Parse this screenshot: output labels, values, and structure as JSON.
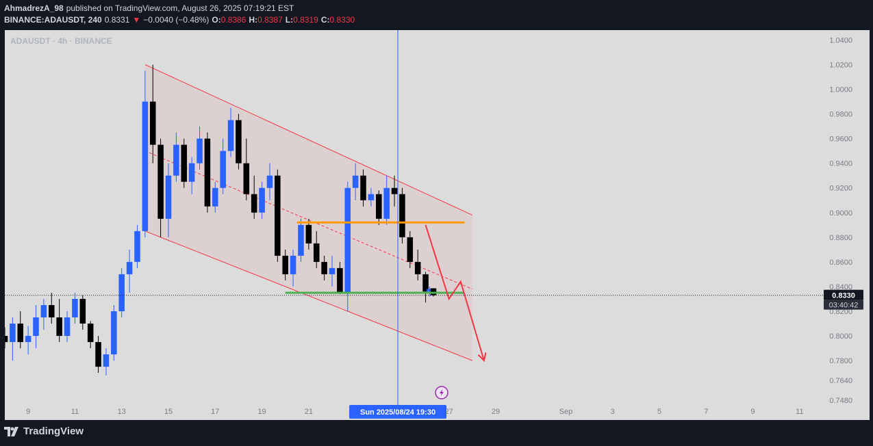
{
  "header": {
    "author": "AhmadrezA_98",
    "published_text": "published on TradingView.com, August 26, 2025 07:19:21 EST",
    "symbol_line": "BINANCE:ADAUSDT, 240",
    "last_price": "0.8331",
    "down_arrow": "▼",
    "change": "−0.0040 (−0.48%)",
    "o_label": "O:",
    "o_value": "0.8386",
    "h_label": "H:",
    "h_value": "0.8387",
    "l_label": "L:",
    "l_value": "0.8319",
    "c_label": "C:",
    "c_value": "0.8330"
  },
  "footer": {
    "brand": "TradingView"
  },
  "colors": {
    "up": "#2962ff",
    "down": "#000000",
    "channel": "#f23645",
    "orange_level": "#ff9800",
    "green_level": "#4caf50",
    "crosshair": "#2962ff"
  },
  "chart_data": {
    "type": "candlestick",
    "title": "ADAUSDT · 4h · BINANCE",
    "x_tick_labels": [
      "9",
      "11",
      "13",
      "15",
      "17",
      "19",
      "21",
      "27",
      "29",
      "Sep",
      "3",
      "5",
      "7",
      "9",
      "11"
    ],
    "y_tick_labels": [
      "1.0400",
      "1.0200",
      "1.0000",
      "0.9800",
      "0.9600",
      "0.9400",
      "0.9200",
      "0.9000",
      "0.8800",
      "0.8600",
      "0.8400",
      "0.8200",
      "0.8000",
      "0.7800",
      "0.7640",
      "0.7480"
    ],
    "ylim": [
      0.744,
      1.048
    ],
    "x_domain": [
      "2025-08-08T00:00",
      "2025-09-12T00:00"
    ],
    "current_price_label": "0.8330",
    "countdown_label": "03:40:42",
    "crosshair_label": "Sun 2025/08/24   19:30",
    "crosshair_time": "2025-08-24T19:30",
    "current_price": 0.833,
    "candles": [
      {
        "t": "2025-08-08T00:00",
        "o": 0.8,
        "h": 0.807,
        "l": 0.79,
        "c": 0.795
      },
      {
        "t": "2025-08-08T08:00",
        "o": 0.795,
        "h": 0.815,
        "l": 0.78,
        "c": 0.81
      },
      {
        "t": "2025-08-08T16:00",
        "o": 0.81,
        "h": 0.82,
        "l": 0.79,
        "c": 0.795
      },
      {
        "t": "2025-08-09T00:00",
        "o": 0.795,
        "h": 0.808,
        "l": 0.785,
        "c": 0.8
      },
      {
        "t": "2025-08-09T08:00",
        "o": 0.8,
        "h": 0.825,
        "l": 0.79,
        "c": 0.815
      },
      {
        "t": "2025-08-09T16:00",
        "o": 0.815,
        "h": 0.83,
        "l": 0.805,
        "c": 0.825
      },
      {
        "t": "2025-08-10T00:00",
        "o": 0.825,
        "h": 0.835,
        "l": 0.81,
        "c": 0.815
      },
      {
        "t": "2025-08-10T08:00",
        "o": 0.815,
        "h": 0.83,
        "l": 0.795,
        "c": 0.8
      },
      {
        "t": "2025-08-10T16:00",
        "o": 0.8,
        "h": 0.82,
        "l": 0.795,
        "c": 0.815
      },
      {
        "t": "2025-08-11T00:00",
        "o": 0.815,
        "h": 0.835,
        "l": 0.81,
        "c": 0.83
      },
      {
        "t": "2025-08-11T08:00",
        "o": 0.83,
        "h": 0.833,
        "l": 0.805,
        "c": 0.81
      },
      {
        "t": "2025-08-11T16:00",
        "o": 0.81,
        "h": 0.812,
        "l": 0.79,
        "c": 0.795
      },
      {
        "t": "2025-08-12T00:00",
        "o": 0.795,
        "h": 0.8,
        "l": 0.77,
        "c": 0.775
      },
      {
        "t": "2025-08-12T08:00",
        "o": 0.775,
        "h": 0.79,
        "l": 0.768,
        "c": 0.785
      },
      {
        "t": "2025-08-12T16:00",
        "o": 0.785,
        "h": 0.825,
        "l": 0.78,
        "c": 0.82
      },
      {
        "t": "2025-08-13T00:00",
        "o": 0.82,
        "h": 0.855,
        "l": 0.815,
        "c": 0.85
      },
      {
        "t": "2025-08-13T08:00",
        "o": 0.85,
        "h": 0.87,
        "l": 0.835,
        "c": 0.86
      },
      {
        "t": "2025-08-13T16:00",
        "o": 0.86,
        "h": 0.89,
        "l": 0.855,
        "c": 0.885
      },
      {
        "t": "2025-08-14T00:00",
        "o": 0.885,
        "h": 1.015,
        "l": 0.88,
        "c": 0.99
      },
      {
        "t": "2025-08-14T08:00",
        "o": 0.99,
        "h": 1.02,
        "l": 0.94,
        "c": 0.955
      },
      {
        "t": "2025-08-14T16:00",
        "o": 0.955,
        "h": 0.96,
        "l": 0.88,
        "c": 0.895
      },
      {
        "t": "2025-08-15T00:00",
        "o": 0.895,
        "h": 0.94,
        "l": 0.88,
        "c": 0.93
      },
      {
        "t": "2025-08-15T08:00",
        "o": 0.93,
        "h": 0.965,
        "l": 0.925,
        "c": 0.955
      },
      {
        "t": "2025-08-15T16:00",
        "o": 0.955,
        "h": 0.96,
        "l": 0.92,
        "c": 0.925
      },
      {
        "t": "2025-08-16T00:00",
        "o": 0.925,
        "h": 0.945,
        "l": 0.915,
        "c": 0.94
      },
      {
        "t": "2025-08-16T08:00",
        "o": 0.94,
        "h": 0.97,
        "l": 0.935,
        "c": 0.96
      },
      {
        "t": "2025-08-16T16:00",
        "o": 0.96,
        "h": 0.965,
        "l": 0.9,
        "c": 0.905
      },
      {
        "t": "2025-08-17T00:00",
        "o": 0.905,
        "h": 0.925,
        "l": 0.9,
        "c": 0.92
      },
      {
        "t": "2025-08-17T08:00",
        "o": 0.92,
        "h": 0.96,
        "l": 0.915,
        "c": 0.95
      },
      {
        "t": "2025-08-17T16:00",
        "o": 0.95,
        "h": 0.985,
        "l": 0.945,
        "c": 0.975
      },
      {
        "t": "2025-08-18T00:00",
        "o": 0.975,
        "h": 0.98,
        "l": 0.935,
        "c": 0.94
      },
      {
        "t": "2025-08-18T08:00",
        "o": 0.94,
        "h": 0.96,
        "l": 0.91,
        "c": 0.915
      },
      {
        "t": "2025-08-18T16:00",
        "o": 0.915,
        "h": 0.93,
        "l": 0.895,
        "c": 0.9
      },
      {
        "t": "2025-08-19T00:00",
        "o": 0.9,
        "h": 0.925,
        "l": 0.895,
        "c": 0.92
      },
      {
        "t": "2025-08-19T08:00",
        "o": 0.92,
        "h": 0.94,
        "l": 0.91,
        "c": 0.93
      },
      {
        "t": "2025-08-19T16:00",
        "o": 0.93,
        "h": 0.935,
        "l": 0.86,
        "c": 0.865
      },
      {
        "t": "2025-08-20T00:00",
        "o": 0.865,
        "h": 0.87,
        "l": 0.845,
        "c": 0.85
      },
      {
        "t": "2025-08-20T08:00",
        "o": 0.85,
        "h": 0.87,
        "l": 0.84,
        "c": 0.865
      },
      {
        "t": "2025-08-20T16:00",
        "o": 0.865,
        "h": 0.895,
        "l": 0.86,
        "c": 0.89
      },
      {
        "t": "2025-08-21T00:00",
        "o": 0.89,
        "h": 0.895,
        "l": 0.87,
        "c": 0.875
      },
      {
        "t": "2025-08-21T08:00",
        "o": 0.875,
        "h": 0.885,
        "l": 0.855,
        "c": 0.86
      },
      {
        "t": "2025-08-21T16:00",
        "o": 0.86,
        "h": 0.865,
        "l": 0.845,
        "c": 0.85
      },
      {
        "t": "2025-08-22T00:00",
        "o": 0.85,
        "h": 0.865,
        "l": 0.84,
        "c": 0.855
      },
      {
        "t": "2025-08-22T08:00",
        "o": 0.855,
        "h": 0.86,
        "l": 0.834,
        "c": 0.835
      },
      {
        "t": "2025-08-22T16:00",
        "o": 0.835,
        "h": 0.925,
        "l": 0.82,
        "c": 0.92
      },
      {
        "t": "2025-08-23T00:00",
        "o": 0.92,
        "h": 0.94,
        "l": 0.91,
        "c": 0.93
      },
      {
        "t": "2025-08-23T08:00",
        "o": 0.93,
        "h": 0.935,
        "l": 0.905,
        "c": 0.91
      },
      {
        "t": "2025-08-23T16:00",
        "o": 0.91,
        "h": 0.92,
        "l": 0.905,
        "c": 0.915
      },
      {
        "t": "2025-08-24T00:00",
        "o": 0.915,
        "h": 0.918,
        "l": 0.89,
        "c": 0.895
      },
      {
        "t": "2025-08-24T08:00",
        "o": 0.895,
        "h": 0.93,
        "l": 0.89,
        "c": 0.92
      },
      {
        "t": "2025-08-24T16:00",
        "o": 0.92,
        "h": 0.93,
        "l": 0.905,
        "c": 0.915
      },
      {
        "t": "2025-08-25T00:00",
        "o": 0.915,
        "h": 0.92,
        "l": 0.875,
        "c": 0.88
      },
      {
        "t": "2025-08-25T08:00",
        "o": 0.88,
        "h": 0.885,
        "l": 0.855,
        "c": 0.86
      },
      {
        "t": "2025-08-25T16:00",
        "o": 0.86,
        "h": 0.87,
        "l": 0.845,
        "c": 0.85
      },
      {
        "t": "2025-08-26T00:00",
        "o": 0.85,
        "h": 0.852,
        "l": 0.827,
        "c": 0.836
      },
      {
        "t": "2025-08-26T04:00",
        "o": 0.836,
        "h": 0.84,
        "l": 0.832,
        "c": 0.838
      },
      {
        "t": "2025-08-26T08:00",
        "o": 0.8386,
        "h": 0.8387,
        "l": 0.8319,
        "c": 0.833
      }
    ],
    "channel_upper": [
      [
        "2025-08-14T00:00",
        1.02
      ],
      [
        "2025-08-28T00:00",
        0.898
      ]
    ],
    "channel_lower": [
      [
        "2025-08-14T00:00",
        0.885
      ],
      [
        "2025-08-28T00:00",
        0.78
      ]
    ],
    "channel_mid": [
      [
        "2025-08-14T00:00",
        0.95
      ],
      [
        "2025-08-28T00:00",
        0.838
      ]
    ],
    "resistance_level": {
      "price": 0.892,
      "from": "2025-08-20T12:00",
      "to": "2025-08-27T16:00"
    },
    "support_level": {
      "price": 0.835,
      "from": "2025-08-20T00:00",
      "to": "2025-08-27T16:00"
    },
    "projection": [
      [
        "2025-08-26T00:00",
        0.89
      ],
      [
        "2025-08-27T00:00",
        0.83
      ],
      [
        "2025-08-27T12:00",
        0.844
      ],
      [
        "2025-08-28T12:00",
        0.78
      ]
    ]
  }
}
